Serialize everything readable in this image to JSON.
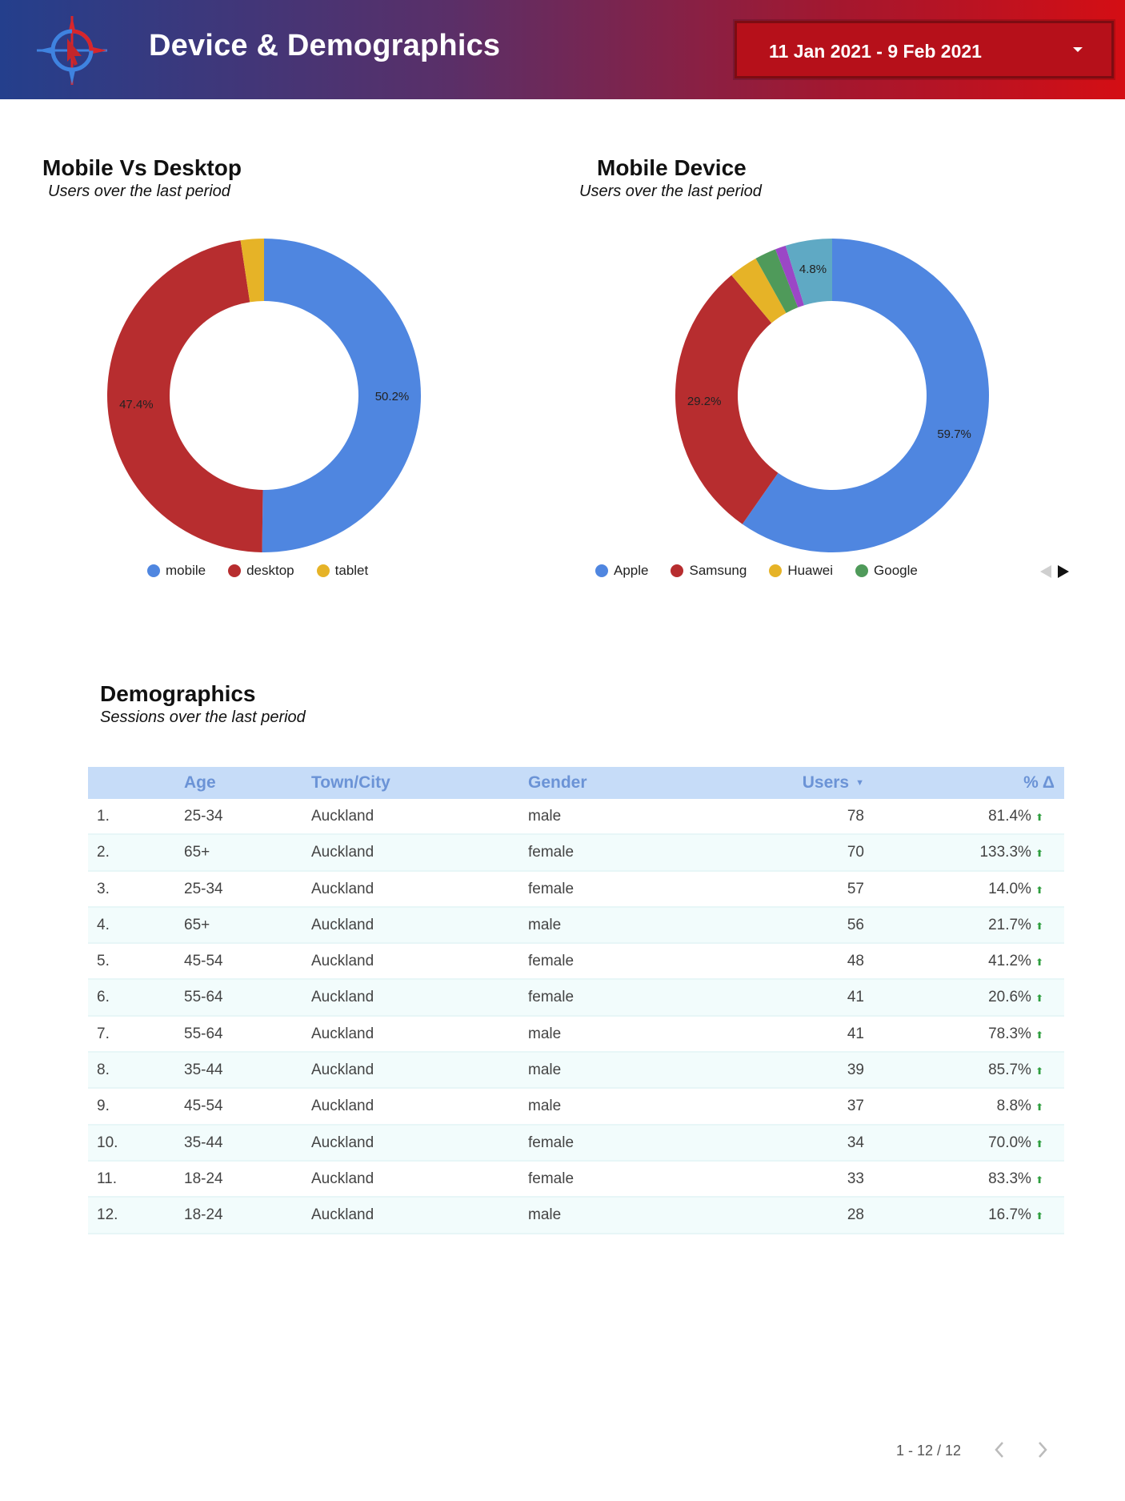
{
  "header": {
    "title": "Device & Demographics",
    "date_range": "11 Jan 2021 - 9 Feb 2021",
    "colors": {
      "start": "#243f8c",
      "end": "#d40e14"
    }
  },
  "sections": {
    "mobile_vs_desktop": {
      "title": "Mobile Vs Desktop",
      "subtitle": "Users over the last period"
    },
    "mobile_device": {
      "title": "Mobile Device",
      "subtitle": "Users over the last period"
    },
    "demographics": {
      "title": "Demographics",
      "subtitle": "Sessions over the last period"
    }
  },
  "chart_data": [
    {
      "type": "pie",
      "title": "Mobile Vs Desktop",
      "subtitle": "Users over the last period",
      "donut": true,
      "slices": [
        {
          "label": "mobile",
          "value": 50.2,
          "display": "50.2%",
          "color": "#4f86e0"
        },
        {
          "label": "desktop",
          "value": 47.4,
          "display": "47.4%",
          "color": "#b72d2f"
        },
        {
          "label": "tablet",
          "value": 2.4,
          "display": "",
          "color": "#e6b327"
        }
      ],
      "legend": [
        "mobile",
        "desktop",
        "tablet"
      ],
      "legend_position": "bottom"
    },
    {
      "type": "pie",
      "title": "Mobile Device",
      "subtitle": "Users over the last period",
      "donut": true,
      "slices": [
        {
          "label": "Apple",
          "value": 59.7,
          "display": "59.7%",
          "color": "#4f86e0"
        },
        {
          "label": "Samsung",
          "value": 29.2,
          "display": "29.2%",
          "color": "#b72d2f"
        },
        {
          "label": "Huawei",
          "value": 3.0,
          "display": "",
          "color": "#e6b327"
        },
        {
          "label": "Google",
          "value": 2.2,
          "display": "",
          "color": "#4f9a5a"
        },
        {
          "label": "",
          "value": 1.1,
          "display": "",
          "color": "#9b47c6"
        },
        {
          "label": "",
          "value": 4.8,
          "display": "4.8%",
          "color": "#5fa9c4"
        }
      ],
      "legend": [
        "Apple",
        "Samsung",
        "Huawei",
        "Google"
      ],
      "legend_position": "bottom"
    },
    {
      "type": "table",
      "title": "Demographics",
      "columns": [
        "",
        "Age",
        "Town/City",
        "Gender",
        "Users",
        "% Δ"
      ],
      "rows": [
        [
          "1.",
          "25-34",
          "Auckland",
          "male",
          "78",
          "81.4%"
        ],
        [
          "2.",
          "65+",
          "Auckland",
          "female",
          "70",
          "133.3%"
        ],
        [
          "3.",
          "25-34",
          "Auckland",
          "female",
          "57",
          "14.0%"
        ],
        [
          "4.",
          "65+",
          "Auckland",
          "male",
          "56",
          "21.7%"
        ],
        [
          "5.",
          "45-54",
          "Auckland",
          "female",
          "48",
          "41.2%"
        ],
        [
          "6.",
          "55-64",
          "Auckland",
          "female",
          "41",
          "20.6%"
        ],
        [
          "7.",
          "55-64",
          "Auckland",
          "male",
          "41",
          "78.3%"
        ],
        [
          "8.",
          "35-44",
          "Auckland",
          "male",
          "39",
          "85.7%"
        ],
        [
          "9.",
          "45-54",
          "Auckland",
          "male",
          "37",
          "8.8%"
        ],
        [
          "10.",
          "35-44",
          "Auckland",
          "female",
          "34",
          "70.0%"
        ],
        [
          "11.",
          "18-24",
          "Auckland",
          "female",
          "33",
          "83.3%"
        ],
        [
          "12.",
          "18-24",
          "Auckland",
          "male",
          "28",
          "16.7%"
        ]
      ]
    }
  ],
  "table": {
    "headers": {
      "age": "Age",
      "city": "Town/City",
      "gender": "Gender",
      "users": "Users",
      "pct": "% Δ"
    },
    "sort": "Users descending",
    "pagination": "1 - 12 / 12"
  },
  "icons": {
    "logo": "compass-cursor-logo",
    "date_caret": "caret-down-icon",
    "sort": "sort-desc-icon",
    "trend": "arrow-up-icon",
    "prev": "chevron-left-icon",
    "next": "chevron-right-icon"
  }
}
